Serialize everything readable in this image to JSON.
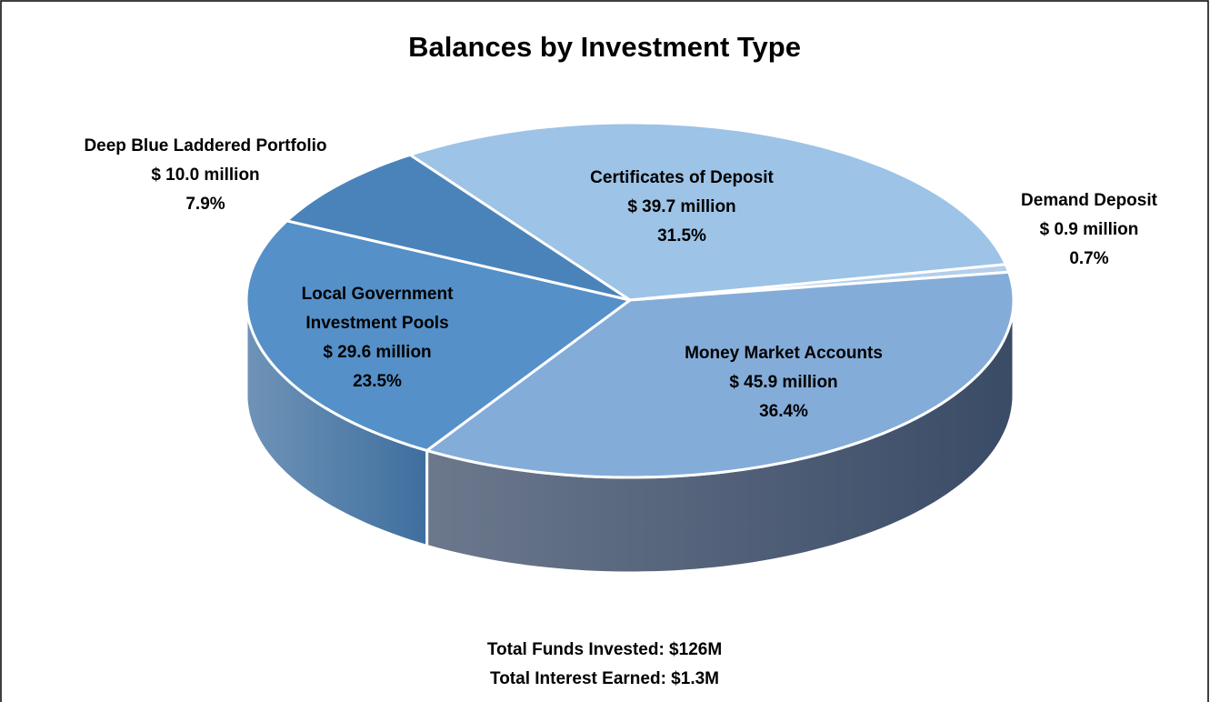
{
  "chart_data": {
    "type": "pie",
    "title": "Balances by Investment Type",
    "categories": [
      "Certificates of Deposit",
      "Demand Deposit",
      "Money Market Accounts",
      "Local Government Investment Pools",
      "Deep Blue Laddered Portfolio"
    ],
    "values": [
      31.5,
      0.7,
      36.4,
      23.5,
      7.9
    ],
    "value_labels": [
      "31.5%",
      "0.7%",
      "36.4%",
      "23.5%",
      "7.9%"
    ],
    "amounts": [
      39.7,
      0.9,
      45.9,
      29.6,
      10.0
    ],
    "amount_labels": [
      "$ 39.7 million",
      "$ 0.9 million",
      "$ 45.9 million",
      "$ 29.6 million",
      "$ 10.0 million"
    ],
    "colors": [
      "#9dc3e6",
      "#b4cfe9",
      "#84acd9",
      "#5590c8",
      "#4a83b9"
    ],
    "side_colors": [
      "#6f94bb",
      "#6f94bb",
      "#3a4b66",
      "#3f6f9f",
      "#3c6a97"
    ],
    "annotations": [
      "Total Funds Invested: $126M",
      "Total Interest Earned: $1.3M"
    ]
  }
}
